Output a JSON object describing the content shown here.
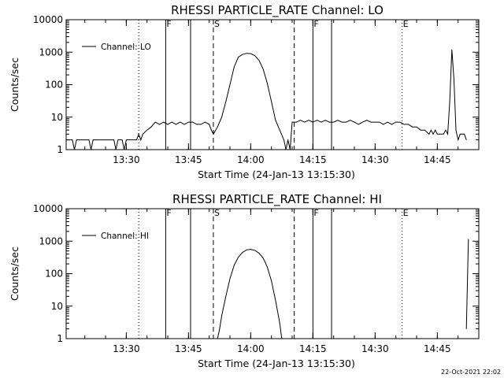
{
  "footer": {
    "timestamp": "22-Oct-2021 22:02"
  },
  "chart_data": [
    {
      "type": "line",
      "title": "RHESSI PARTICLE_RATE Channel: LO",
      "xlabel": "Start Time (24-Jan-13 13:15:30)",
      "ylabel": "Counts/sec",
      "yscale": "log",
      "ylim": [
        1,
        10000
      ],
      "xlim": [
        "13:15:30",
        "14:55:00"
      ],
      "x_ticks": [
        "13:30",
        "13:45",
        "14:00",
        "14:15",
        "14:30",
        "14:45"
      ],
      "y_ticks": [
        "1",
        "10",
        "100",
        "1000",
        "10000"
      ],
      "legend": {
        "position": "top-left",
        "entries": [
          "Channel: LO"
        ]
      },
      "series": [
        {
          "name": "Channel: LO",
          "x": [
            "13:15:30",
            "13:17:00",
            "13:17:30",
            "13:18:00",
            "13:21:00",
            "13:21:30",
            "13:22:00",
            "13:22:30",
            "13:23:00",
            "13:27:00",
            "13:27:30",
            "13:28:00",
            "13:29:00",
            "13:29:30",
            "13:30:00",
            "13:32:00",
            "13:32:30",
            "13:33:00",
            "13:33:30",
            "13:34:00",
            "13:35:00",
            "13:36:00",
            "13:37:00",
            "13:38:00",
            "13:39:00",
            "13:40:00",
            "13:41:00",
            "13:42:00",
            "13:43:00",
            "13:44:00",
            "13:45:00",
            "13:46:00",
            "13:47:00",
            "13:48:00",
            "13:49:00",
            "13:50:00",
            "13:50:30",
            "13:51:00",
            "13:52:00",
            "13:53:00",
            "13:54:00",
            "13:55:00",
            "13:56:00",
            "13:57:00",
            "13:58:00",
            "13:59:00",
            "14:00:00",
            "14:01:00",
            "14:02:00",
            "14:03:00",
            "14:04:00",
            "14:05:00",
            "14:06:00",
            "14:07:00",
            "14:08:00",
            "14:08:30",
            "14:09:00",
            "14:09:30",
            "14:10:00",
            "14:11:00",
            "14:12:00",
            "14:13:00",
            "14:14:00",
            "14:15:00",
            "14:16:00",
            "14:17:00",
            "14:18:00",
            "14:19:00",
            "14:20:00",
            "14:21:00",
            "14:22:00",
            "14:23:00",
            "14:24:00",
            "14:25:00",
            "14:26:00",
            "14:27:00",
            "14:28:00",
            "14:29:00",
            "14:30:00",
            "14:31:00",
            "14:32:00",
            "14:33:00",
            "14:34:00",
            "14:35:00",
            "14:36:00",
            "14:37:00",
            "14:38:00",
            "14:39:00",
            "14:40:00",
            "14:41:00",
            "14:42:00",
            "14:43:00",
            "14:43:30",
            "14:44:00",
            "14:44:30",
            "14:45:00",
            "14:45:30",
            "14:46:00",
            "14:46:30",
            "14:47:00",
            "14:47:30",
            "14:48:00",
            "14:48:30",
            "14:49:00",
            "14:49:30",
            "14:50:00",
            "14:50:30",
            "14:51:00",
            "14:51:30",
            "14:52:00"
          ],
          "y": [
            2,
            2,
            1,
            2,
            2,
            1,
            2,
            2,
            2,
            2,
            1,
            2,
            2,
            1,
            2,
            2,
            2,
            3,
            2,
            3,
            4,
            5,
            7,
            6,
            7,
            6,
            7,
            6,
            7,
            6,
            7,
            7,
            6,
            6,
            7,
            6,
            4,
            3,
            5,
            10,
            30,
            100,
            350,
            700,
            850,
            920,
            900,
            780,
            560,
            300,
            110,
            30,
            8,
            4,
            2,
            1,
            2,
            1,
            7,
            7,
            8,
            7,
            8,
            7,
            8,
            7,
            8,
            7,
            7,
            8,
            7,
            7,
            8,
            7,
            6,
            7,
            8,
            7,
            7,
            7,
            6,
            7,
            6,
            7,
            7,
            6,
            6,
            5,
            5,
            4,
            4,
            3,
            4,
            3,
            4,
            3,
            3,
            3,
            3,
            4,
            3,
            30,
            1200,
            150,
            4,
            2,
            3,
            3,
            3,
            2
          ]
        }
      ],
      "markers": [
        {
          "x": "13:33:00",
          "style": "dotted",
          "label": ""
        },
        {
          "x": "13:39:30",
          "style": "solid",
          "label": "F"
        },
        {
          "x": "13:45:30",
          "style": "solid",
          "label": ""
        },
        {
          "x": "13:51:00",
          "style": "dashed",
          "label": "S"
        },
        {
          "x": "14:10:30",
          "style": "dashed",
          "label": ""
        },
        {
          "x": "14:15:00",
          "style": "solid",
          "label": "F"
        },
        {
          "x": "14:19:30",
          "style": "solid",
          "label": ""
        },
        {
          "x": "14:36:30",
          "style": "dotted",
          "label": "E"
        },
        {
          "x": "14:55:00",
          "style": "dotted",
          "label": ""
        }
      ]
    },
    {
      "type": "line",
      "title": "RHESSI PARTICLE_RATE Channel: HI",
      "xlabel": "Start Time (24-Jan-13 13:15:30)",
      "ylabel": "Counts/sec",
      "yscale": "log",
      "ylim": [
        1,
        10000
      ],
      "xlim": [
        "13:15:30",
        "14:55:00"
      ],
      "x_ticks": [
        "13:30",
        "13:45",
        "14:00",
        "14:15",
        "14:30",
        "14:45"
      ],
      "y_ticks": [
        "1",
        "10",
        "100",
        "1000",
        "10000"
      ],
      "legend": {
        "position": "top-left",
        "entries": [
          "Channel: HI"
        ]
      },
      "series": [
        {
          "name": "Channel: HI",
          "x": [
            "13:52:00",
            "13:52:30",
            "13:53:00",
            "13:54:00",
            "13:55:00",
            "13:56:00",
            "13:57:00",
            "13:58:00",
            "13:59:00",
            "14:00:00",
            "14:01:00",
            "14:02:00",
            "14:03:00",
            "14:04:00",
            "14:05:00",
            "14:06:00",
            "14:07:00",
            "14:07:30"
          ],
          "y": [
            1,
            2,
            5,
            20,
            70,
            180,
            320,
            450,
            540,
            560,
            520,
            430,
            300,
            160,
            60,
            15,
            3,
            1
          ]
        },
        {
          "name": "",
          "x": [
            "14:52:00",
            "14:52:30"
          ],
          "y": [
            2,
            1150
          ]
        }
      ],
      "markers": [
        {
          "x": "13:33:00",
          "style": "dotted",
          "label": ""
        },
        {
          "x": "13:39:30",
          "style": "solid",
          "label": "F"
        },
        {
          "x": "13:45:30",
          "style": "solid",
          "label": ""
        },
        {
          "x": "13:51:00",
          "style": "dashed",
          "label": "S"
        },
        {
          "x": "14:10:30",
          "style": "dashed",
          "label": ""
        },
        {
          "x": "14:15:00",
          "style": "solid",
          "label": "F"
        },
        {
          "x": "14:19:30",
          "style": "solid",
          "label": ""
        },
        {
          "x": "14:36:30",
          "style": "dotted",
          "label": "E"
        },
        {
          "x": "14:55:00",
          "style": "dotted",
          "label": ""
        }
      ]
    }
  ]
}
